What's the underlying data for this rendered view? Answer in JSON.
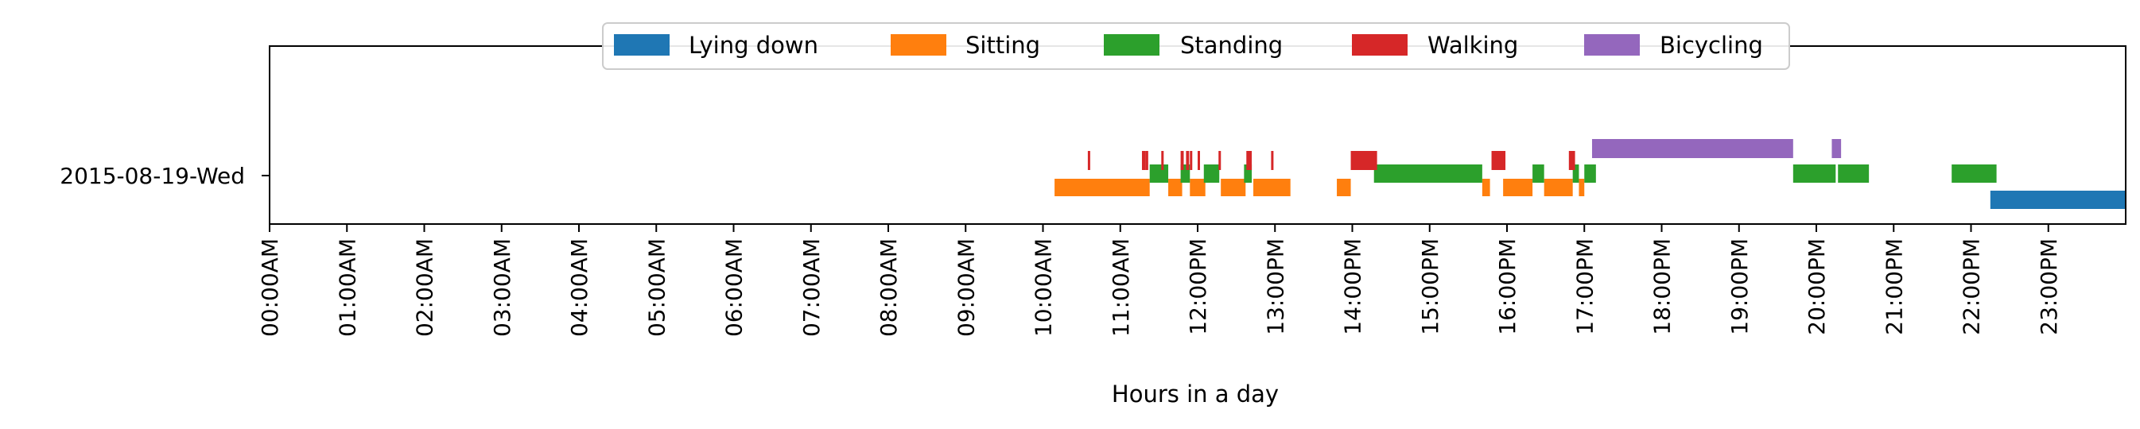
{
  "chart_data": {
    "type": "timeline",
    "title": "",
    "xlabel": "Hours in a day",
    "ylabel": "",
    "xlim": [
      0,
      24
    ],
    "x_ticks": [
      "00:00AM",
      "01:00AM",
      "02:00AM",
      "03:00AM",
      "04:00AM",
      "05:00AM",
      "06:00AM",
      "07:00AM",
      "08:00AM",
      "09:00AM",
      "10:00AM",
      "11:00AM",
      "12:00PM",
      "13:00PM",
      "14:00PM",
      "15:00PM",
      "16:00PM",
      "17:00PM",
      "18:00PM",
      "19:00PM",
      "20:00PM",
      "21:00PM",
      "22:00PM",
      "23:00PM"
    ],
    "y_categories": [
      "2015-08-19-Wed"
    ],
    "legend_position": "top-center",
    "grid": false,
    "series": [
      {
        "name": "Lying down",
        "color": "#1f77b4",
        "intervals": [
          [
            22.25,
            24.0
          ]
        ]
      },
      {
        "name": "Sitting",
        "color": "#ff7f0e",
        "intervals": [
          [
            10.15,
            11.38
          ],
          [
            11.62,
            11.8
          ],
          [
            11.9,
            12.1
          ],
          [
            12.3,
            12.62
          ],
          [
            12.72,
            13.2
          ],
          [
            13.8,
            13.98
          ],
          [
            15.68,
            15.78
          ],
          [
            15.95,
            16.33
          ],
          [
            16.48,
            16.85
          ],
          [
            16.93,
            17.0
          ]
        ]
      },
      {
        "name": "Standing",
        "color": "#2ca02c",
        "intervals": [
          [
            11.38,
            11.62
          ],
          [
            11.78,
            11.9
          ],
          [
            12.08,
            12.28
          ],
          [
            12.6,
            12.7
          ],
          [
            14.28,
            15.68
          ],
          [
            16.33,
            16.48
          ],
          [
            16.85,
            16.93
          ],
          [
            17.0,
            17.15
          ],
          [
            19.7,
            20.25
          ],
          [
            20.28,
            20.68
          ],
          [
            21.75,
            22.33
          ]
        ]
      },
      {
        "name": "Walking",
        "color": "#d62728",
        "intervals": [
          [
            10.58,
            10.61
          ],
          [
            11.28,
            11.33
          ],
          [
            11.33,
            11.36
          ],
          [
            11.53,
            11.56
          ],
          [
            11.78,
            11.82
          ],
          [
            11.85,
            11.89
          ],
          [
            11.9,
            11.93
          ],
          [
            12.0,
            12.03
          ],
          [
            12.27,
            12.3
          ],
          [
            12.63,
            12.7
          ],
          [
            12.95,
            12.98
          ],
          [
            13.98,
            14.32
          ],
          [
            15.8,
            15.98
          ],
          [
            16.8,
            16.88
          ]
        ]
      },
      {
        "name": "Bicycling",
        "color": "#9467bd",
        "intervals": [
          [
            17.1,
            19.7
          ],
          [
            20.2,
            20.32
          ]
        ]
      }
    ]
  }
}
